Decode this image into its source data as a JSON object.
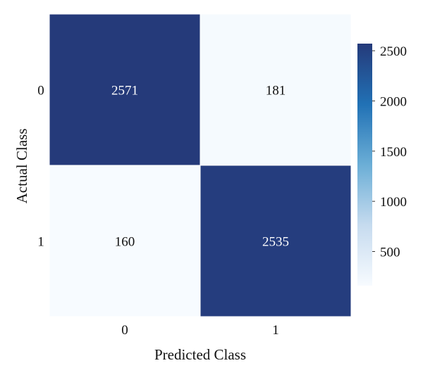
{
  "chart_data": {
    "type": "heatmap",
    "title": "",
    "xlabel": "Predicted Class",
    "ylabel": "Actual Class",
    "x_categories": [
      "0",
      "1"
    ],
    "y_categories": [
      "0",
      "1"
    ],
    "values": [
      [
        2571,
        181
      ],
      [
        160,
        2535
      ]
    ],
    "colorbar": {
      "range": [
        160,
        2571
      ],
      "ticks": [
        "500",
        "1000",
        "1500",
        "2000",
        "2500"
      ],
      "colormap": [
        "#f7fbff",
        "#c6dbef",
        "#6baed6",
        "#2171b5",
        "#253a7a"
      ]
    },
    "grid": false,
    "legend": "colorbar-right"
  }
}
